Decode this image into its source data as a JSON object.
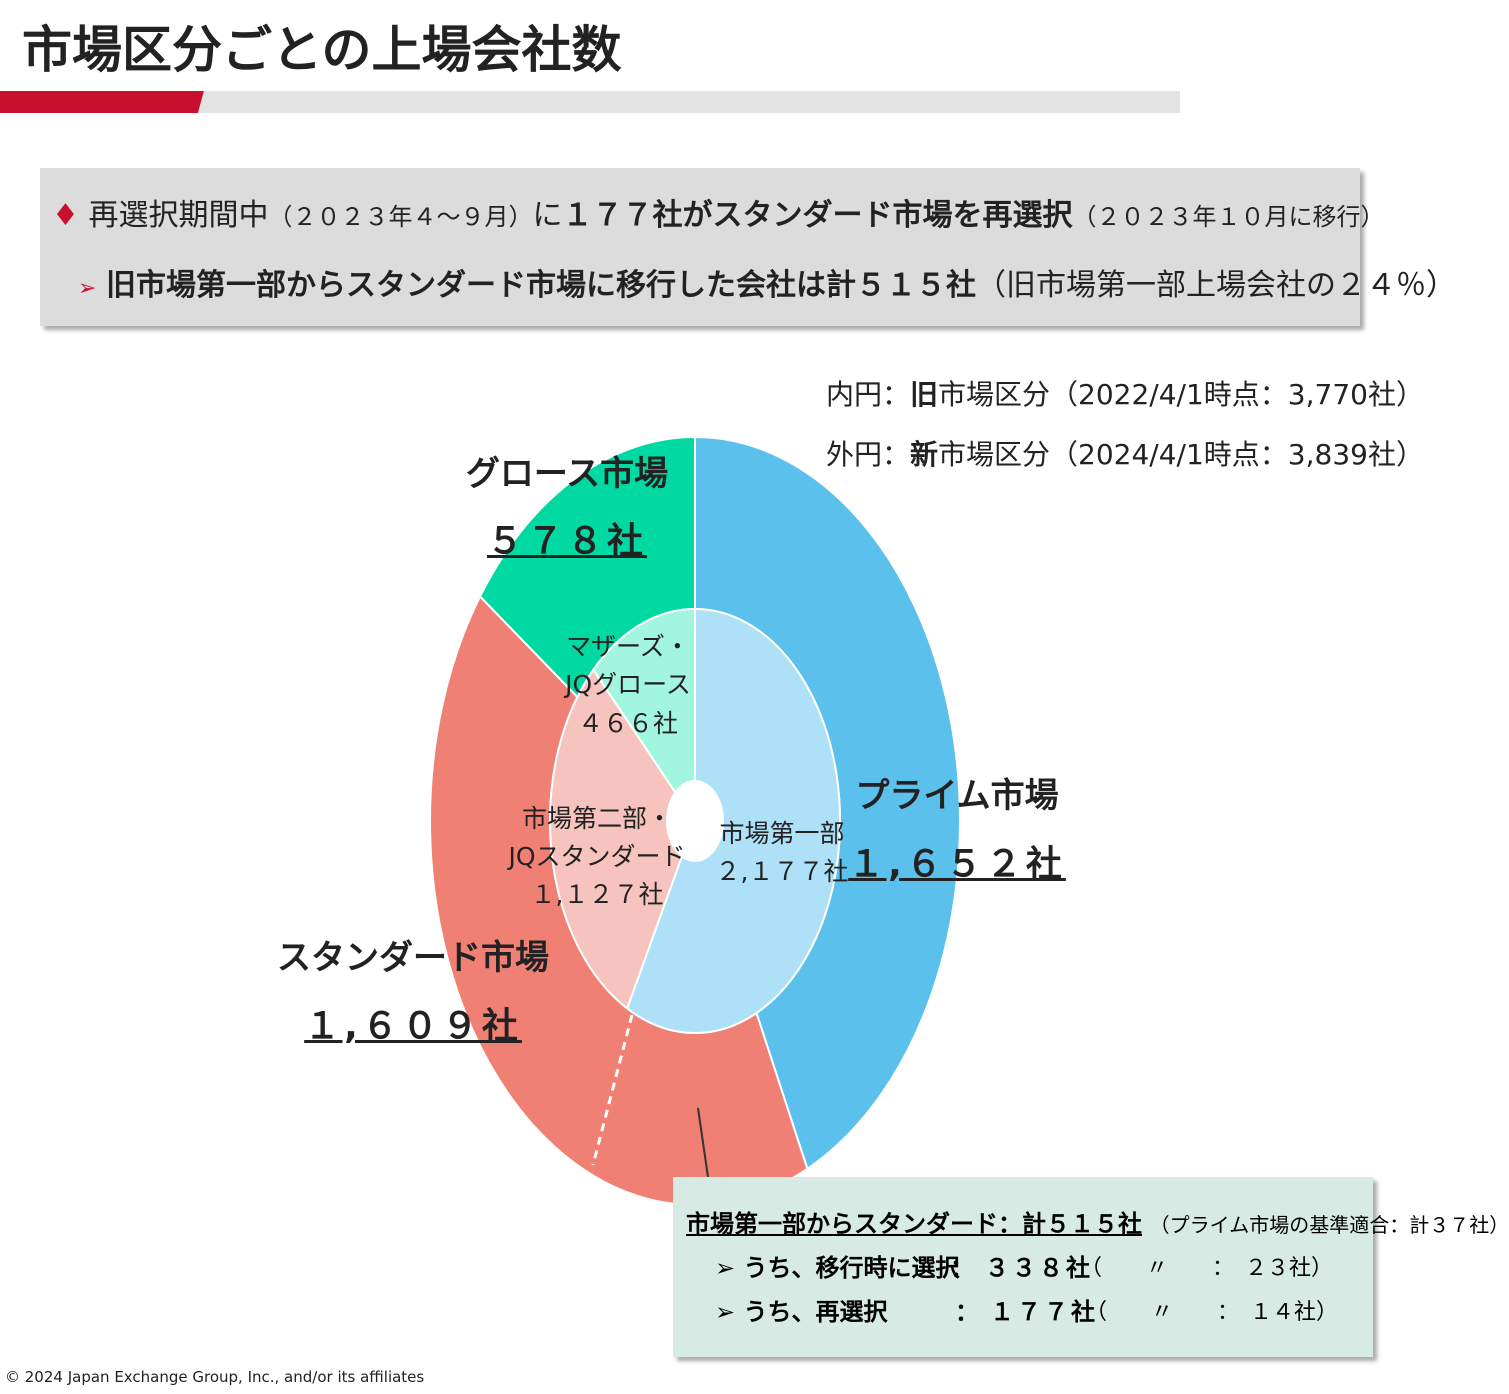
{
  "header": {
    "title": "市場区分ごとの上場会社数"
  },
  "banner": {
    "line1": [
      "再選択期間中",
      "（２０２３年４～９月）",
      "に",
      "１７７社がスタンダード市場を再選択",
      "（２０２３年１０月に移行）"
    ],
    "line2": [
      "旧市場第一部からスタンダード市場に移行した会社は計５１５社",
      "（旧市場第一部上場会社の２４％）"
    ]
  },
  "chart_data": {
    "type": "donut",
    "inner_note": [
      "内円：",
      "旧",
      "市場区分（2022/4/1時点：3,770社）"
    ],
    "outer_note": [
      "外円：",
      "新",
      "市場区分（2024/4/1時点：3,839社）"
    ],
    "outer": {
      "categories": [
        "プライム市場",
        "スタンダード市場",
        "グロース市場"
      ],
      "values": [
        1652,
        1609,
        578
      ],
      "value_labels": [
        "１,６５２社",
        "１,６０９社",
        "５７８社"
      ],
      "colors": [
        "#5bc0ec",
        "#f08074",
        "#00d9a1"
      ]
    },
    "inner": {
      "categories": [
        "市場第一部",
        "市場第二部・\nJQスタンダード",
        "マザーズ・\nJQグロース"
      ],
      "values": [
        2177,
        1127,
        466
      ],
      "value_labels": [
        "２,１７７社",
        "１,１２７社",
        "４６６社"
      ],
      "colors": [
        "#aee0f7",
        "#f6c3be",
        "#a2f5df"
      ]
    }
  },
  "callout": {
    "title": "市場第一部からスタンダード：計５１５社",
    "title_note": "（プライム市場の基準適合：計３７社）",
    "rows": [
      {
        "label": "うち、移行時に選択",
        "sep": "：",
        "count": "３３８社",
        "note": "（　　〃　　：　２３社）"
      },
      {
        "label": "うち、再選択",
        "sep": "：",
        "count": "１７７社",
        "note": "（　　〃　　：　１４社）"
      }
    ]
  },
  "footer": {
    "copyright": "© 2024 Japan Exchange Group, Inc., and/or its affiliates"
  }
}
